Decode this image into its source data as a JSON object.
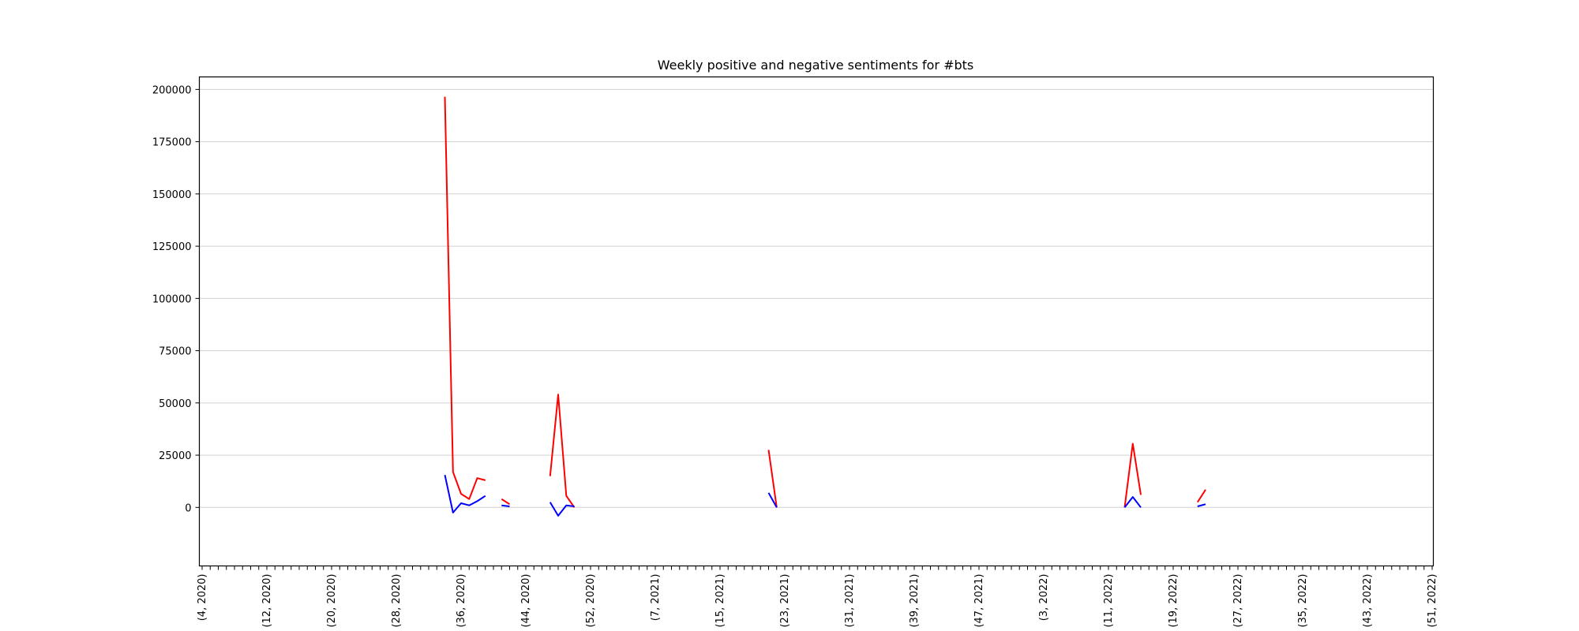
{
  "chart_data": {
    "type": "line",
    "title": "Weekly positive and negative sentiments for #bts",
    "xlabel": "",
    "ylabel": "",
    "ylim": [
      -28000,
      206000
    ],
    "x_labeled_ticks": [
      "(4, 2020)",
      "(12, 2020)",
      "(20, 2020)",
      "(28, 2020)",
      "(36, 2020)",
      "(44, 2020)",
      "(52, 2020)",
      "(7, 2021)",
      "(15, 2021)",
      "(23, 2021)",
      "(31, 2021)",
      "(39, 2021)",
      "(47, 2021)",
      "(3, 2022)",
      "(11, 2022)",
      "(19, 2022)",
      "(27, 2022)",
      "(35, 2022)",
      "(43, 2022)",
      "(51, 2022)"
    ],
    "x_tick_count": 153,
    "y_ticks": [
      0,
      25000,
      50000,
      75000,
      100000,
      125000,
      150000,
      175000,
      200000
    ],
    "y_tick_labels": [
      "0",
      "25000",
      "50000",
      "75000",
      "100000",
      "125000",
      "150000",
      "175000",
      "200000"
    ],
    "grid": "horizontal",
    "series": [
      {
        "color": "#ff0000",
        "segments": [
          [
            [
              "(34, 2020)",
              196500
            ],
            [
              "(35, 2020)",
              17000
            ],
            [
              "(36, 2020)",
              6500
            ],
            [
              "(37, 2020)",
              4000
            ],
            [
              "(38, 2020)",
              14000
            ],
            [
              "(39, 2020)",
              13000
            ]
          ],
          [
            [
              "(41, 2020)",
              4000
            ],
            [
              "(42, 2020)",
              1500
            ]
          ],
          [
            [
              "(47, 2020)",
              15000
            ],
            [
              "(48, 2020)",
              54000
            ],
            [
              "(49, 2020)",
              5500
            ],
            [
              "(50, 2020)",
              0
            ]
          ],
          [
            [
              "(21, 2021)",
              27500
            ],
            [
              "(22, 2021)",
              0
            ]
          ],
          [
            [
              "(13, 2022)",
              0
            ],
            [
              "(14, 2022)",
              30500
            ],
            [
              "(15, 2022)",
              6000
            ]
          ],
          [
            [
              "(22, 2022)",
              2500
            ],
            [
              "(23, 2022)",
              8500
            ]
          ]
        ]
      },
      {
        "color": "#0000ff",
        "segments": [
          [
            [
              "(34, 2020)",
              15500
            ],
            [
              "(35, 2020)",
              -2500
            ],
            [
              "(36, 2020)",
              2000
            ],
            [
              "(37, 2020)",
              1000
            ],
            [
              "(38, 2020)",
              3000
            ],
            [
              "(39, 2020)",
              5500
            ]
          ],
          [
            [
              "(41, 2020)",
              1000
            ],
            [
              "(42, 2020)",
              500
            ]
          ],
          [
            [
              "(47, 2020)",
              2500
            ],
            [
              "(48, 2020)",
              -4000
            ],
            [
              "(49, 2020)",
              1000
            ],
            [
              "(50, 2020)",
              500
            ]
          ],
          [
            [
              "(21, 2021)",
              7000
            ],
            [
              "(22, 2021)",
              0
            ]
          ],
          [
            [
              "(13, 2022)",
              0
            ],
            [
              "(14, 2022)",
              5000
            ],
            [
              "(15, 2022)",
              0
            ]
          ],
          [
            [
              "(22, 2022)",
              500
            ],
            [
              "(23, 2022)",
              1500
            ]
          ]
        ]
      }
    ]
  }
}
